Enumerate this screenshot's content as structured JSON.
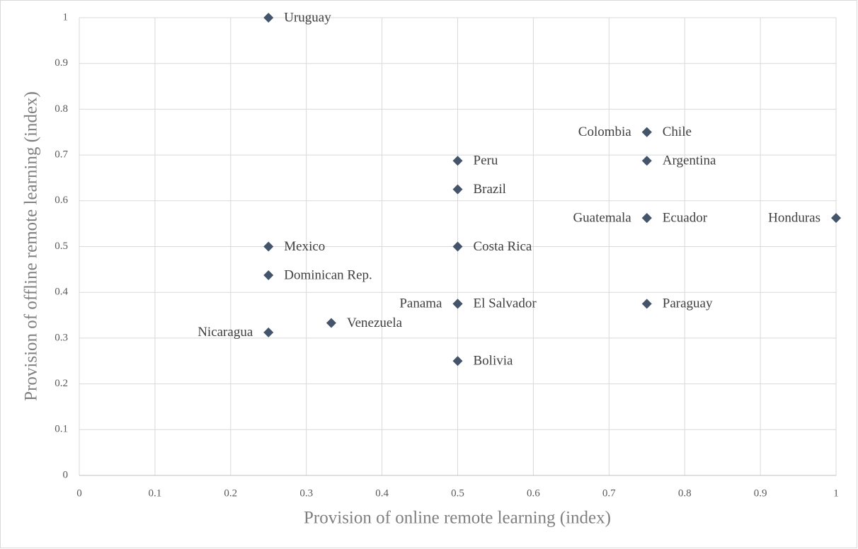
{
  "chart_data": {
    "type": "scatter",
    "xlabel": "Provision of  online remote learning (index)",
    "ylabel": "Provision of  offline remote learning (index)",
    "labels": [
      "Uruguay",
      "Colombia",
      "Chile",
      "Peru",
      "Argentina",
      "Brazil",
      "Guatemala",
      "Ecuador",
      "Honduras",
      "Mexico",
      "Costa Rica",
      "Dominican Rep.",
      "Panama",
      "El Salvador",
      "Paraguay",
      "Nicaragua",
      "Venezuela",
      "Bolivia"
    ],
    "label_sides": [
      "right",
      "left",
      "right",
      "right",
      "right",
      "right",
      "left",
      "right",
      "left",
      "right",
      "right",
      "right",
      "left",
      "right",
      "right",
      "left",
      "right",
      "right"
    ],
    "x": [
      0.25,
      0.75,
      0.75,
      0.5,
      0.75,
      0.5,
      0.75,
      0.75,
      1.0,
      0.25,
      0.5,
      0.25,
      0.5,
      0.5,
      0.75,
      0.25,
      0.333,
      0.5
    ],
    "y": [
      1.0,
      0.75,
      0.75,
      0.6875,
      0.6875,
      0.625,
      0.5625,
      0.5625,
      0.5625,
      0.5,
      0.5,
      0.4375,
      0.375,
      0.375,
      0.375,
      0.3125,
      0.333,
      0.25
    ],
    "color": "#44546a",
    "xlim": [
      0,
      1
    ],
    "ylim": [
      0,
      1
    ],
    "xticks": [
      0,
      0.1,
      0.2,
      0.3,
      0.4,
      0.5,
      0.6,
      0.7,
      0.8,
      0.9,
      1
    ],
    "yticks": [
      0,
      0.1,
      0.2,
      0.3,
      0.4,
      0.5,
      0.6,
      0.7,
      0.8,
      0.9,
      1
    ],
    "grid": true
  }
}
